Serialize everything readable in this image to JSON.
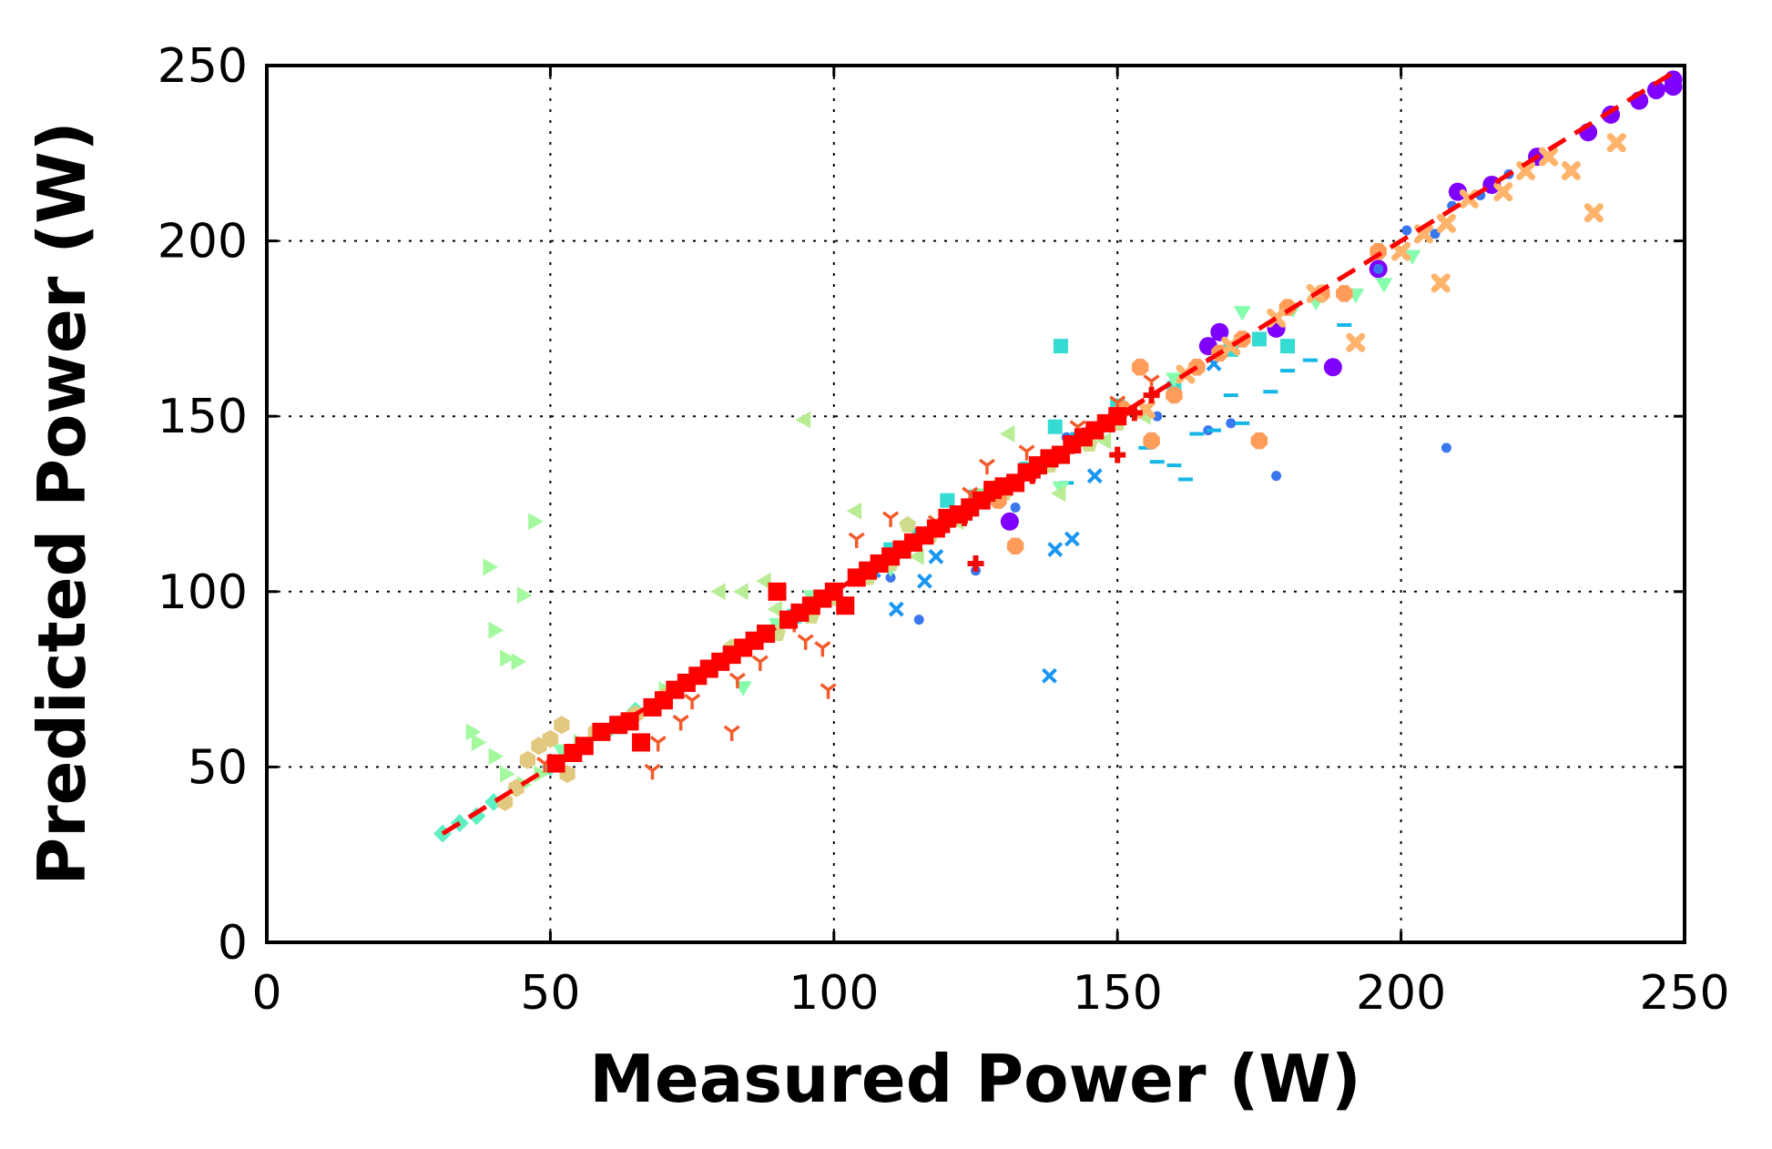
{
  "chart_data": {
    "type": "scatter",
    "title": "",
    "xlabel": "Measured Power (W)",
    "ylabel": "Predicted Power (W)",
    "xlim": [
      0,
      250
    ],
    "ylim": [
      0,
      250
    ],
    "xticks": [
      "0",
      "50",
      "100",
      "150",
      "200",
      "250"
    ],
    "yticks": [
      "0",
      "50",
      "100",
      "150",
      "200",
      "250"
    ],
    "grid": true,
    "reference_line": {
      "style": "dashed",
      "color": "#ff0000",
      "points": [
        [
          31,
          31
        ],
        [
          248,
          248
        ]
      ]
    },
    "series": [
      {
        "marker": "circle-large",
        "color": "#7f00ff",
        "points": [
          [
            131,
            120
          ],
          [
            166,
            170
          ],
          [
            168,
            174
          ],
          [
            178,
            175
          ],
          [
            188,
            164
          ],
          [
            196,
            192
          ],
          [
            210,
            214
          ],
          [
            216,
            216
          ],
          [
            224,
            224
          ],
          [
            233,
            231
          ],
          [
            237,
            236
          ],
          [
            242,
            240
          ],
          [
            245,
            243
          ],
          [
            248,
            246
          ],
          [
            248,
            244
          ]
        ]
      },
      {
        "marker": "dot",
        "color": "#3a77ef",
        "points": [
          [
            105,
            105
          ],
          [
            110,
            104
          ],
          [
            115,
            92
          ],
          [
            125,
            106
          ],
          [
            132,
            124
          ],
          [
            141,
            144
          ],
          [
            157,
            150
          ],
          [
            166,
            146
          ],
          [
            170,
            148
          ],
          [
            178,
            133
          ],
          [
            196,
            192
          ],
          [
            201,
            203
          ],
          [
            206,
            202
          ],
          [
            208,
            141
          ],
          [
            209,
            210
          ],
          [
            214,
            213
          ],
          [
            219,
            219
          ]
        ]
      },
      {
        "marker": "x",
        "color": "#1996f3",
        "points": [
          [
            107,
            106
          ],
          [
            111,
            95
          ],
          [
            116,
            103
          ],
          [
            118,
            110
          ],
          [
            138,
            76
          ],
          [
            139,
            112
          ],
          [
            142,
            115
          ],
          [
            146,
            133
          ],
          [
            160,
            158
          ],
          [
            167,
            165
          ]
        ]
      },
      {
        "marker": "hline",
        "color": "#13b6e6",
        "points": [
          [
            141,
            131
          ],
          [
            143,
            145
          ],
          [
            155,
            141
          ],
          [
            157,
            137
          ],
          [
            160,
            136
          ],
          [
            162,
            132
          ],
          [
            164,
            145
          ],
          [
            167,
            146
          ],
          [
            170,
            156
          ],
          [
            172,
            148
          ],
          [
            177,
            157
          ],
          [
            180,
            163
          ],
          [
            184,
            166
          ],
          [
            190,
            176
          ]
        ]
      },
      {
        "marker": "square",
        "color": "#33dbd3",
        "points": [
          [
            93,
            93
          ],
          [
            110,
            112
          ],
          [
            115,
            116
          ],
          [
            120,
            126
          ],
          [
            125,
            127
          ],
          [
            130,
            130
          ],
          [
            134,
            135
          ],
          [
            139,
            147
          ],
          [
            140,
            170
          ],
          [
            150,
            153
          ],
          [
            160,
            158
          ],
          [
            170,
            169
          ],
          [
            175,
            172
          ],
          [
            180,
            170
          ]
        ]
      },
      {
        "marker": "diamond",
        "color": "#5ef0c2",
        "points": [
          [
            31,
            31
          ],
          [
            34,
            34
          ],
          [
            37,
            36
          ],
          [
            40,
            40
          ],
          [
            44,
            44
          ],
          [
            50,
            50
          ],
          [
            55,
            55
          ],
          [
            60,
            60
          ],
          [
            65,
            66
          ],
          [
            70,
            70
          ],
          [
            75,
            75
          ],
          [
            80,
            80
          ],
          [
            85,
            85
          ],
          [
            90,
            90
          ]
        ]
      },
      {
        "marker": "triangle-down",
        "color": "#87fead",
        "points": [
          [
            52,
            55
          ],
          [
            60,
            60
          ],
          [
            72,
            72
          ],
          [
            84,
            73
          ],
          [
            90,
            91
          ],
          [
            96,
            99
          ],
          [
            110,
            107
          ],
          [
            126,
            128
          ],
          [
            140,
            130
          ],
          [
            160,
            161
          ],
          [
            172,
            180
          ],
          [
            181,
            181
          ],
          [
            185,
            183
          ],
          [
            192,
            185
          ],
          [
            197,
            188
          ],
          [
            202,
            196
          ]
        ]
      },
      {
        "marker": "triangle-right",
        "color": "#a4f89e",
        "points": [
          [
            39,
            107
          ],
          [
            40,
            89
          ],
          [
            42,
            81
          ],
          [
            44,
            80
          ],
          [
            45,
            99
          ],
          [
            47,
            120
          ],
          [
            36,
            60
          ],
          [
            37,
            57
          ],
          [
            40,
            53
          ],
          [
            42,
            48
          ],
          [
            45,
            45
          ],
          [
            48,
            48
          ],
          [
            55,
            57
          ],
          [
            60,
            60
          ],
          [
            70,
            72
          ]
        ]
      },
      {
        "marker": "triangle-left",
        "color": "#b8ed96",
        "points": [
          [
            95,
            149
          ],
          [
            104,
            123
          ],
          [
            88,
            103
          ],
          [
            84,
            100
          ],
          [
            80,
            100
          ],
          [
            90,
            95
          ],
          [
            100,
            100
          ],
          [
            115,
            110
          ],
          [
            122,
            120
          ],
          [
            128,
            130
          ],
          [
            131,
            145
          ],
          [
            140,
            128
          ],
          [
            148,
            143
          ],
          [
            155,
            150
          ]
        ]
      },
      {
        "marker": "pentagon",
        "color": "#d1db8c",
        "points": [
          [
            82,
            84
          ],
          [
            90,
            88
          ],
          [
            96,
            93
          ],
          [
            100,
            98
          ],
          [
            106,
            104
          ],
          [
            110,
            108
          ],
          [
            113,
            119
          ],
          [
            117,
            116
          ],
          [
            121,
            121
          ],
          [
            126,
            126
          ],
          [
            130,
            128
          ],
          [
            138,
            136
          ],
          [
            145,
            142
          ],
          [
            150,
            148
          ]
        ]
      },
      {
        "marker": "hexagon",
        "color": "#e3c880",
        "points": [
          [
            42,
            40
          ],
          [
            44,
            44
          ],
          [
            46,
            52
          ],
          [
            48,
            56
          ],
          [
            50,
            58
          ],
          [
            52,
            62
          ],
          [
            53,
            48
          ],
          [
            58,
            60
          ],
          [
            65,
            65
          ],
          [
            70,
            70
          ],
          [
            76,
            76
          ],
          [
            84,
            84
          ]
        ]
      },
      {
        "marker": "octagon",
        "color": "#ff9c5a",
        "points": [
          [
            129,
            126
          ],
          [
            132,
            113
          ],
          [
            140,
            139
          ],
          [
            146,
            146
          ],
          [
            151,
            152
          ],
          [
            154,
            164
          ],
          [
            156,
            143
          ],
          [
            160,
            156
          ],
          [
            164,
            164
          ],
          [
            168,
            168
          ],
          [
            172,
            172
          ],
          [
            175,
            143
          ],
          [
            180,
            181
          ],
          [
            186,
            185
          ],
          [
            190,
            185
          ],
          [
            196,
            197
          ]
        ]
      },
      {
        "marker": "plus-x",
        "color": "#ffb36b",
        "points": [
          [
            200,
            197
          ],
          [
            204,
            202
          ],
          [
            208,
            205
          ],
          [
            212,
            212
          ],
          [
            218,
            214
          ],
          [
            222,
            220
          ],
          [
            226,
            224
          ],
          [
            230,
            220
          ],
          [
            234,
            208
          ],
          [
            238,
            228
          ],
          [
            207,
            188
          ],
          [
            192,
            171
          ],
          [
            185,
            185
          ],
          [
            178,
            178
          ],
          [
            170,
            170
          ],
          [
            162,
            162
          ],
          [
            155,
            152
          ]
        ]
      },
      {
        "marker": "tri-down",
        "color": "#f35a2b",
        "points": [
          [
            49,
            51
          ],
          [
            68,
            49
          ],
          [
            69,
            57
          ],
          [
            73,
            63
          ],
          [
            75,
            69
          ],
          [
            82,
            60
          ],
          [
            83,
            75
          ],
          [
            87,
            80
          ],
          [
            93,
            91
          ],
          [
            95,
            86
          ],
          [
            98,
            84
          ],
          [
            99,
            72
          ],
          [
            104,
            115
          ],
          [
            110,
            121
          ],
          [
            118,
            120
          ],
          [
            124,
            128
          ],
          [
            127,
            136
          ],
          [
            134,
            140
          ],
          [
            143,
            147
          ],
          [
            150,
            154
          ],
          [
            156,
            160
          ]
        ]
      },
      {
        "marker": "plus",
        "color": "#f00a05",
        "points": [
          [
            120,
            119
          ],
          [
            123,
            121
          ],
          [
            125,
            108
          ],
          [
            128,
            128
          ],
          [
            131,
            130
          ],
          [
            135,
            133
          ],
          [
            138,
            138
          ],
          [
            141,
            140
          ],
          [
            145,
            146
          ],
          [
            150,
            139
          ],
          [
            153,
            151
          ],
          [
            156,
            156
          ]
        ]
      },
      {
        "marker": "square-large",
        "color": "#ff0000",
        "points": [
          [
            51,
            51
          ],
          [
            54,
            54
          ],
          [
            56,
            56
          ],
          [
            59,
            60
          ],
          [
            62,
            62
          ],
          [
            64,
            63
          ],
          [
            66,
            57
          ],
          [
            68,
            67
          ],
          [
            70,
            69
          ],
          [
            72,
            72
          ],
          [
            74,
            74
          ],
          [
            76,
            76
          ],
          [
            78,
            78
          ],
          [
            80,
            80
          ],
          [
            82,
            82
          ],
          [
            84,
            84
          ],
          [
            86,
            86
          ],
          [
            88,
            88
          ],
          [
            90,
            100
          ],
          [
            92,
            92
          ],
          [
            94,
            94
          ],
          [
            96,
            96
          ],
          [
            98,
            98
          ],
          [
            100,
            100
          ],
          [
            102,
            96
          ],
          [
            104,
            104
          ],
          [
            106,
            106
          ],
          [
            108,
            108
          ],
          [
            110,
            110
          ],
          [
            112,
            112
          ],
          [
            114,
            114
          ],
          [
            116,
            116
          ],
          [
            118,
            118
          ],
          [
            120,
            121
          ],
          [
            122,
            122
          ],
          [
            124,
            124
          ],
          [
            126,
            126
          ],
          [
            128,
            129
          ],
          [
            130,
            130
          ],
          [
            132,
            131
          ],
          [
            134,
            134
          ],
          [
            136,
            136
          ],
          [
            138,
            138
          ],
          [
            140,
            139
          ],
          [
            142,
            142
          ],
          [
            144,
            144
          ],
          [
            146,
            146
          ],
          [
            148,
            148
          ],
          [
            150,
            150
          ]
        ]
      }
    ]
  }
}
